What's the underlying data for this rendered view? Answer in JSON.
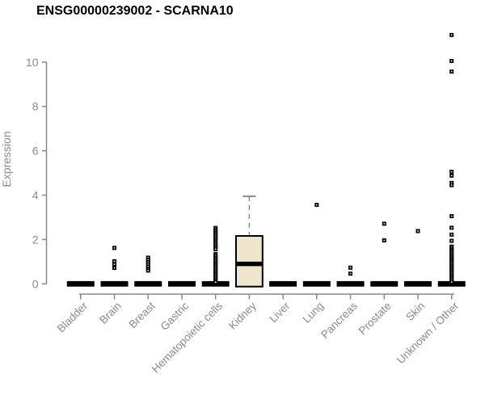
{
  "chart_data": {
    "type": "boxplot",
    "title": "ENSG00000239002 - SCARNA10",
    "ylabel": "Expression",
    "xlabel": "",
    "yticks": [
      0,
      2,
      4,
      6,
      8,
      10
    ],
    "ylim": [
      0,
      11.6
    ],
    "grid": false,
    "legend": "none",
    "categories": [
      "Bladder",
      "Brain",
      "Breast",
      "Gastric",
      "Hematopoietic cells",
      "Kidney",
      "Liver",
      "Lung",
      "Pancreas",
      "Prostate",
      "Skin",
      "Unknown / Other"
    ],
    "boxes": [
      {
        "category": "Bladder",
        "low": 0,
        "q1": 0,
        "median": 0,
        "q3": 0,
        "high": 0,
        "outliers": []
      },
      {
        "category": "Brain",
        "low": 0,
        "q1": 0,
        "median": 0,
        "q3": 0,
        "high": 0,
        "outliers": [
          1.62,
          1.02,
          0.88,
          0.72
        ]
      },
      {
        "category": "Breast",
        "low": 0,
        "q1": 0,
        "median": 0,
        "q3": 0,
        "high": 0,
        "outliers": [
          1.18,
          1.08,
          0.98,
          0.88,
          0.78,
          0.68,
          0.6
        ]
      },
      {
        "category": "Gastric",
        "low": 0,
        "q1": 0,
        "median": 0,
        "q3": 0,
        "high": 0,
        "outliers": []
      },
      {
        "category": "Hematopoietic cells",
        "low": 0,
        "q1": 0,
        "median": 0,
        "q3": 0,
        "high": 0,
        "outliers": [
          2.52,
          2.44,
          2.36,
          2.28,
          2.2,
          2.12,
          2.04,
          1.96,
          1.88,
          1.8,
          1.72,
          1.64,
          1.56,
          1.34,
          1.26,
          1.18,
          1.1,
          1.02,
          0.94,
          0.86,
          0.78,
          0.7,
          0.62,
          0.54,
          0.46,
          0.38,
          0.3,
          0.22,
          0.14,
          0.08
        ]
      },
      {
        "category": "Kidney",
        "low": 0,
        "q1": 0,
        "median": 0.9,
        "q3": 2.16,
        "high": 3.95,
        "outliers": []
      },
      {
        "category": "Liver",
        "low": 0,
        "q1": 0,
        "median": 0,
        "q3": 0,
        "high": 0,
        "outliers": []
      },
      {
        "category": "Lung",
        "low": 0,
        "q1": 0,
        "median": 0,
        "q3": 0,
        "high": 0,
        "outliers": [
          3.56
        ]
      },
      {
        "category": "Pancreas",
        "low": 0,
        "q1": 0,
        "median": 0,
        "q3": 0,
        "high": 0,
        "outliers": [
          0.73,
          0.46
        ]
      },
      {
        "category": "Prostate",
        "low": 0,
        "q1": 0,
        "median": 0,
        "q3": 0,
        "high": 0,
        "outliers": [
          2.71,
          1.96
        ]
      },
      {
        "category": "Skin",
        "low": 0,
        "q1": 0,
        "median": 0,
        "q3": 0,
        "high": 0,
        "outliers": [
          2.38
        ]
      },
      {
        "category": "Unknown / Other",
        "low": 0,
        "q1": 0,
        "median": 0,
        "q3": 0,
        "high": 0,
        "outliers": [
          11.22,
          10.05,
          9.57,
          5.05,
          4.88,
          4.55,
          4.45,
          3.05,
          2.53,
          2.22,
          1.94,
          1.68,
          1.6,
          1.52,
          1.44,
          1.36,
          1.28,
          1.2,
          1.12,
          1.04,
          0.96,
          0.88,
          0.8,
          0.72,
          0.64,
          0.56,
          0.48,
          0.4,
          0.32,
          0.24,
          0.16,
          0.08
        ]
      }
    ],
    "colors": {
      "axis": "#888888",
      "tick_labels": "#8a8a8a",
      "title": "#000000",
      "box_fill": "#efe6cb",
      "box_stroke": "#000000",
      "median": "#000000",
      "outlier": "#000000"
    }
  }
}
